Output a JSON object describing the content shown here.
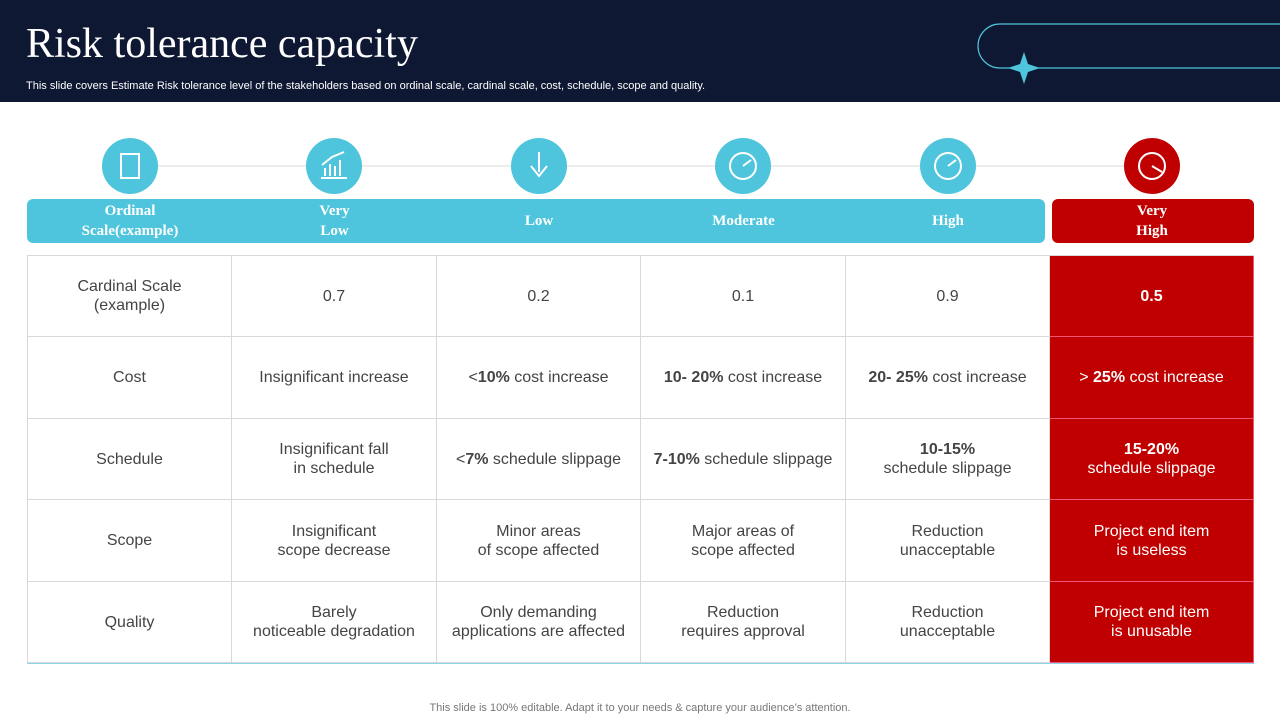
{
  "header": {
    "title": "Risk tolerance capacity",
    "subtitle": "This slide covers Estimate Risk tolerance level of the stakeholders based on ordinal scale, cardinal scale, cost, schedule, scope and quality."
  },
  "table": {
    "columns": [
      "Ordinal\nScale(example)",
      "Very\nLow",
      "Low",
      "Moderate",
      "High",
      "Very\nHigh"
    ],
    "rows": [
      [
        [
          {
            "text": "Cardinal Scale\n(example)"
          }
        ],
        [
          {
            "text": "0.7"
          }
        ],
        [
          {
            "text": "0.2"
          }
        ],
        [
          {
            "text": "0.1"
          }
        ],
        [
          {
            "text": "0.9"
          }
        ],
        [
          {
            "text": "0.5",
            "bold": true
          }
        ]
      ],
      [
        [
          {
            "text": "Cost"
          }
        ],
        [
          {
            "text": "Insignificant  increase"
          }
        ],
        [
          {
            "text": "<"
          },
          {
            "text": "10%",
            "bold": true
          },
          {
            "text": " cost increase"
          }
        ],
        [
          {
            "text": "10- 20%",
            "bold": true
          },
          {
            "text": " cost increase"
          }
        ],
        [
          {
            "text": "20- 25%",
            "bold": true
          },
          {
            "text": " cost increase"
          }
        ],
        [
          {
            "text": "> "
          },
          {
            "text": "25%",
            "bold": true
          },
          {
            "text": " cost increase"
          }
        ]
      ],
      [
        [
          {
            "text": "Schedule"
          }
        ],
        [
          {
            "text": "Insignificant  fall\nin schedule"
          }
        ],
        [
          {
            "text": "<"
          },
          {
            "text": "7%",
            "bold": true
          },
          {
            "text": " schedule slippage"
          }
        ],
        [
          {
            "text": "7-10%",
            "bold": true
          },
          {
            "text": " schedule slippage"
          }
        ],
        [
          {
            "text": "10-15%",
            "bold": true
          },
          {
            "text": "\nschedule slippage"
          }
        ],
        [
          {
            "text": "15-20%",
            "bold": true
          },
          {
            "text": "\nschedule slippage"
          }
        ]
      ],
      [
        [
          {
            "text": "Scope"
          }
        ],
        [
          {
            "text": "Insignificant\nscope decrease"
          }
        ],
        [
          {
            "text": "Minor areas\nof scope affected"
          }
        ],
        [
          {
            "text": "Major areas of\nscope affected"
          }
        ],
        [
          {
            "text": "Reduction\nunacceptable"
          }
        ],
        [
          {
            "text": "Project end item\nis useless"
          }
        ]
      ],
      [
        [
          {
            "text": "Quality"
          }
        ],
        [
          {
            "text": "Barely\nnoticeable degradation"
          }
        ],
        [
          {
            "text": "Only demanding\napplications are affected"
          }
        ],
        [
          {
            "text": "Reduction\nrequires approval"
          }
        ],
        [
          {
            "text": "Reduction\nunacceptable"
          }
        ],
        [
          {
            "text": "Project end item\nis unusable"
          }
        ]
      ]
    ]
  },
  "footer": "This slide is 100% editable. Adapt it to your needs & capture your audience’s attention."
}
